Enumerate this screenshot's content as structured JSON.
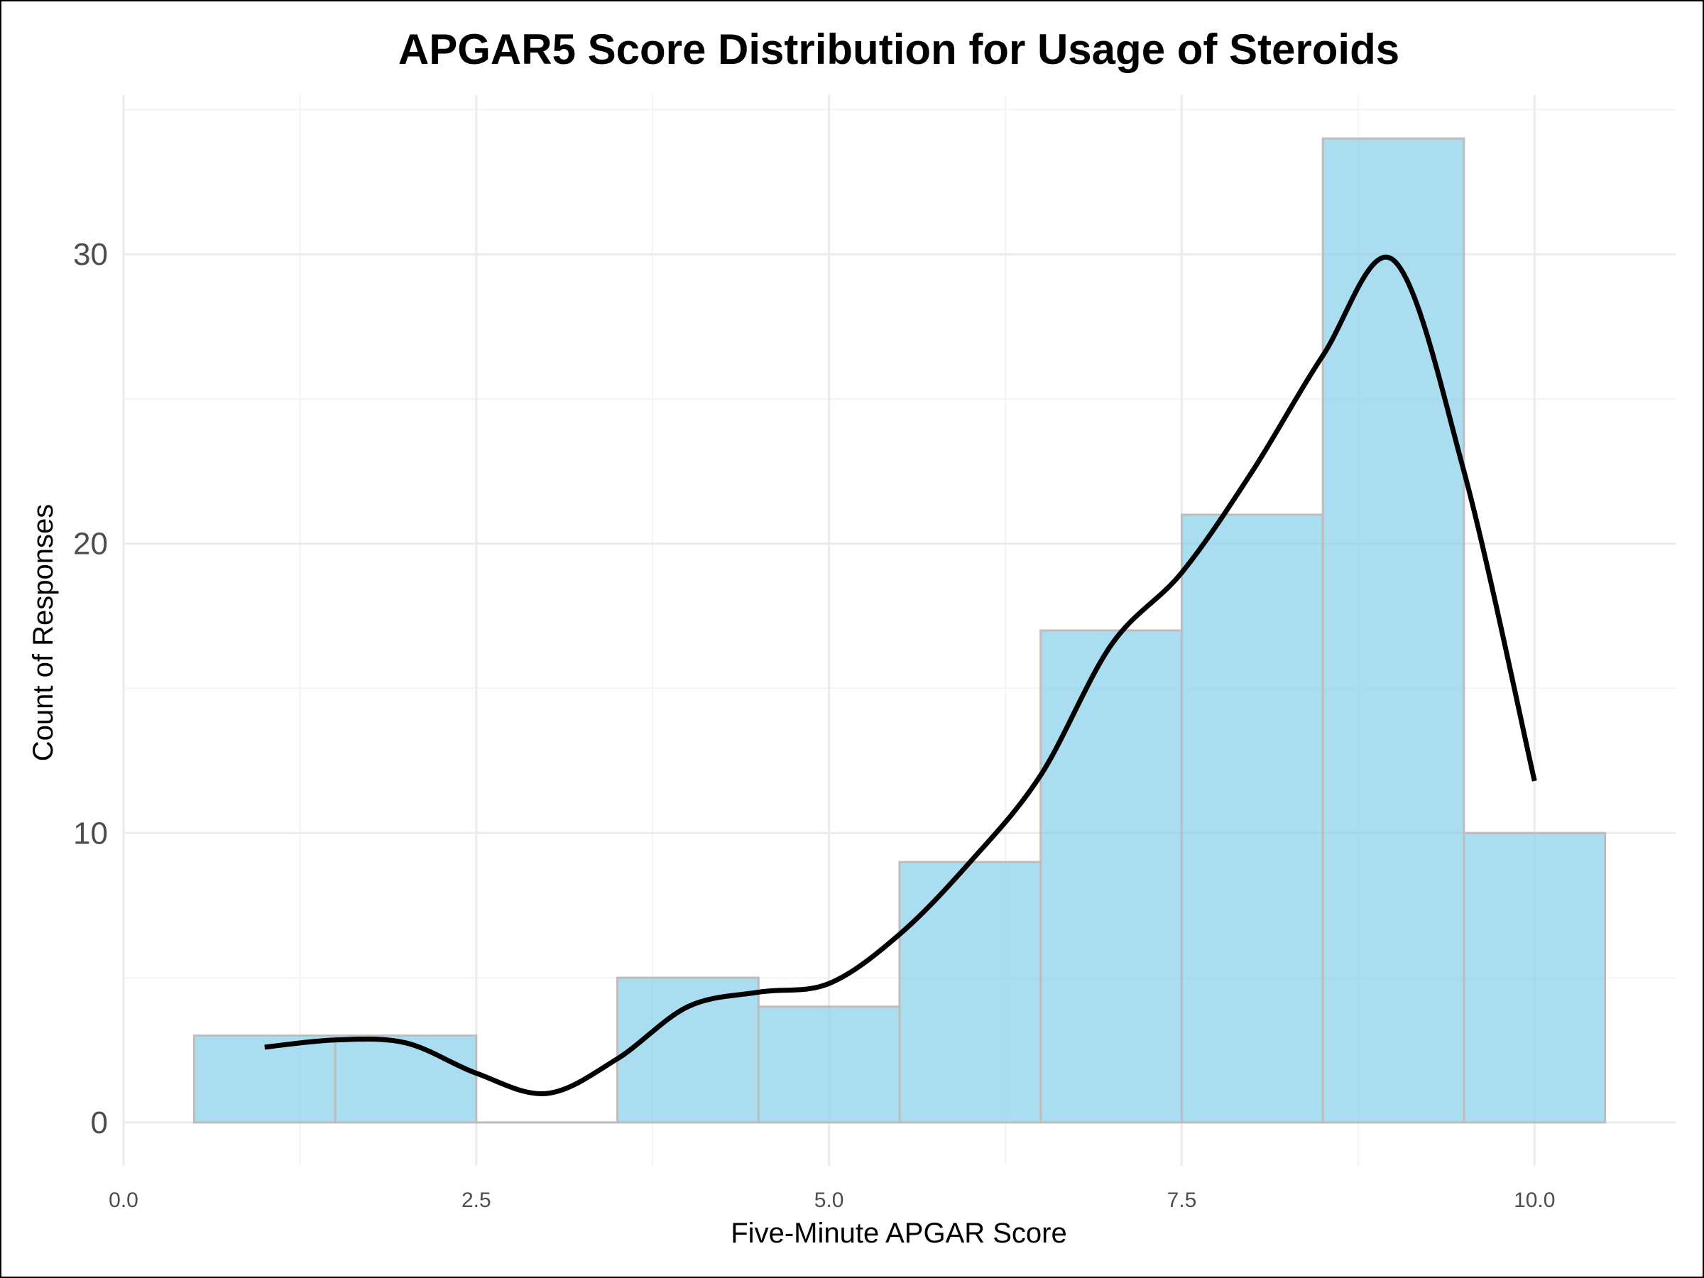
{
  "chart_data": {
    "type": "bar",
    "title": "APGAR5 Score Distribution for Usage of Steroids",
    "xlabel": "Five-Minute APGAR Score",
    "ylabel": "Count of Responses",
    "xlim": [
      0,
      11.0
    ],
    "ylim": [
      -1.5,
      35.5
    ],
    "x_ticks": [
      0,
      2.5,
      5,
      7.5,
      10
    ],
    "x_tick_labels": [
      "0.0",
      "2.5",
      "5.0",
      "7.5",
      "10.0"
    ],
    "y_ticks": [
      0,
      10,
      20,
      30
    ],
    "y_tick_labels": [
      "0",
      "10",
      "20",
      "30"
    ],
    "grid": true,
    "bar_color": "#87CEEB",
    "bar_outline": "#bdbdbd",
    "bins": [
      {
        "x_start": 0.5,
        "x_end": 1.5,
        "count": 3
      },
      {
        "x_start": 1.5,
        "x_end": 2.5,
        "count": 3
      },
      {
        "x_start": 2.5,
        "x_end": 3.5,
        "count": 0
      },
      {
        "x_start": 3.5,
        "x_end": 4.5,
        "count": 5
      },
      {
        "x_start": 4.5,
        "x_end": 5.5,
        "count": 4
      },
      {
        "x_start": 5.5,
        "x_end": 6.5,
        "count": 9
      },
      {
        "x_start": 6.5,
        "x_end": 7.5,
        "count": 17
      },
      {
        "x_start": 7.5,
        "x_end": 8.5,
        "count": 21
      },
      {
        "x_start": 8.5,
        "x_end": 9.5,
        "count": 34
      },
      {
        "x_start": 9.5,
        "x_end": 10.5,
        "count": 10
      }
    ],
    "density_curve": {
      "color": "#000000",
      "points": [
        [
          1.0,
          2.6
        ],
        [
          1.5,
          2.85
        ],
        [
          2.0,
          2.75
        ],
        [
          2.5,
          1.7
        ],
        [
          3.0,
          1.0
        ],
        [
          3.5,
          2.2
        ],
        [
          4.0,
          4.0
        ],
        [
          4.5,
          4.5
        ],
        [
          5.0,
          4.8
        ],
        [
          5.5,
          6.5
        ],
        [
          6.0,
          9.0
        ],
        [
          6.5,
          12.0
        ],
        [
          7.0,
          16.5
        ],
        [
          7.5,
          19.0
        ],
        [
          8.0,
          22.5
        ],
        [
          8.5,
          26.5
        ],
        [
          9.0,
          29.8
        ],
        [
          9.5,
          22.5
        ],
        [
          10.0,
          11.8
        ]
      ]
    }
  }
}
